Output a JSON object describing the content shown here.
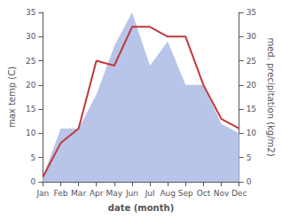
{
  "chart_data": {
    "type": "line",
    "xlabel": "date (month)",
    "ylabel": "max temp (C)",
    "y2label": "med. precipitation (kg/m2)",
    "categories": [
      "Jan",
      "Feb",
      "Mar",
      "Apr",
      "May",
      "Jun",
      "Jul",
      "Aug",
      "Sep",
      "Oct",
      "Nov",
      "Dec"
    ],
    "series": [
      {
        "type": "area",
        "color": "#b8c4e8",
        "axis": "y2",
        "values": [
          1,
          11,
          11,
          18,
          28,
          35,
          24,
          29,
          20,
          20,
          12,
          10
        ]
      },
      {
        "type": "line",
        "color": "#c0393b",
        "values": [
          1,
          8,
          11,
          25,
          24,
          32,
          32,
          30,
          30,
          20,
          13,
          11
        ]
      }
    ],
    "ylim": [
      0,
      35
    ],
    "yticks": [
      0,
      5,
      10,
      15,
      20,
      25,
      30,
      35
    ],
    "y2lim": [
      0,
      35
    ],
    "y2ticks": [
      0,
      5,
      10,
      15,
      20,
      25,
      30,
      35
    ],
    "grid": false
  }
}
